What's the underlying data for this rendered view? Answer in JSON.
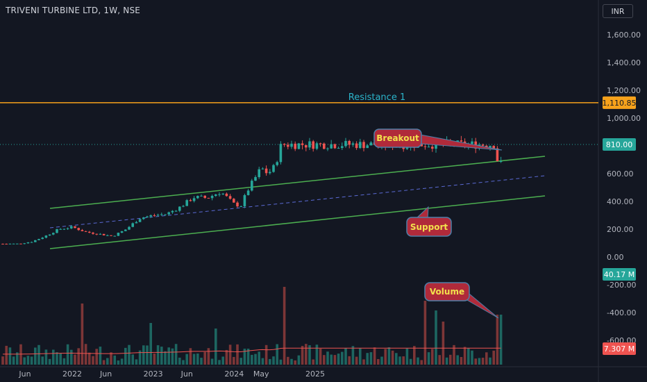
{
  "header": {
    "title": "TRIVENI TURBINE LTD, 1W, NSE",
    "currency": "INR"
  },
  "colors": {
    "background": "#131722",
    "up": "#26a69a",
    "down": "#ef5350",
    "channel": "#4caf50",
    "midline": "#5b6bd6",
    "resistance": "#f7a21b",
    "callout_fill": "#b02a3a",
    "callout_border": "#4f7fa8",
    "ma": "#ef5350"
  },
  "chart_data": {
    "type": "candlestick",
    "title": "TRIVENI TURBINE LTD, 1W, NSE",
    "price_axis": {
      "ticks": [
        "1,600.00",
        "1,400.00",
        "1,200.00",
        "1,000.00",
        "600.00",
        "400.00",
        "200.00",
        "0.00"
      ],
      "tick_values": [
        1600,
        1400,
        1200,
        1000,
        600,
        400,
        200,
        0
      ],
      "range": [
        -620,
        1760
      ]
    },
    "volume_axis": {
      "ticks": [
        "-200.00",
        "-400.00",
        "-600.00"
      ],
      "tick_values": [
        -200,
        -400,
        -600
      ]
    },
    "time_axis": [
      "Jun",
      "2022",
      "Jun",
      "2023",
      "Jun",
      "2024",
      "May",
      "2025"
    ],
    "price_labels": [
      {
        "text": "1,110.85",
        "value": 1110.85,
        "kind": "resistance"
      },
      {
        "text": "810.00",
        "value": 810,
        "kind": "last"
      }
    ],
    "volume_labels": [
      {
        "text": "40.17 M",
        "kind": "volume"
      },
      {
        "text": "7.307 M",
        "kind": "volume-ma"
      }
    ],
    "resistance": {
      "label": "Resistance 1",
      "value": 1110.85
    },
    "annotations": [
      "Breakout",
      "Support",
      "Volume"
    ],
    "price_path": [
      [
        "2021-05",
        95
      ],
      [
        "2021-07",
        110
      ],
      [
        "2021-09",
        150
      ],
      [
        "2021-11",
        200
      ],
      [
        "2022-01",
        215
      ],
      [
        "2022-03",
        180
      ],
      [
        "2022-05",
        165
      ],
      [
        "2022-07",
        150
      ],
      [
        "2022-09",
        200
      ],
      [
        "2022-11",
        280
      ],
      [
        "2023-01",
        300
      ],
      [
        "2023-03",
        310
      ],
      [
        "2023-05",
        360
      ],
      [
        "2023-07",
        430
      ],
      [
        "2023-09",
        425
      ],
      [
        "2023-11",
        470
      ],
      [
        "2024-01",
        380
      ],
      [
        "2024-02",
        370
      ],
      [
        "2024-03",
        480
      ],
      [
        "2024-04",
        560
      ],
      [
        "2024-05",
        640
      ],
      [
        "2024-06",
        600
      ],
      [
        "2024-07",
        650
      ],
      [
        "2024-08",
        810
      ]
    ],
    "last_price": 810,
    "last_volume": "40.17 M"
  }
}
